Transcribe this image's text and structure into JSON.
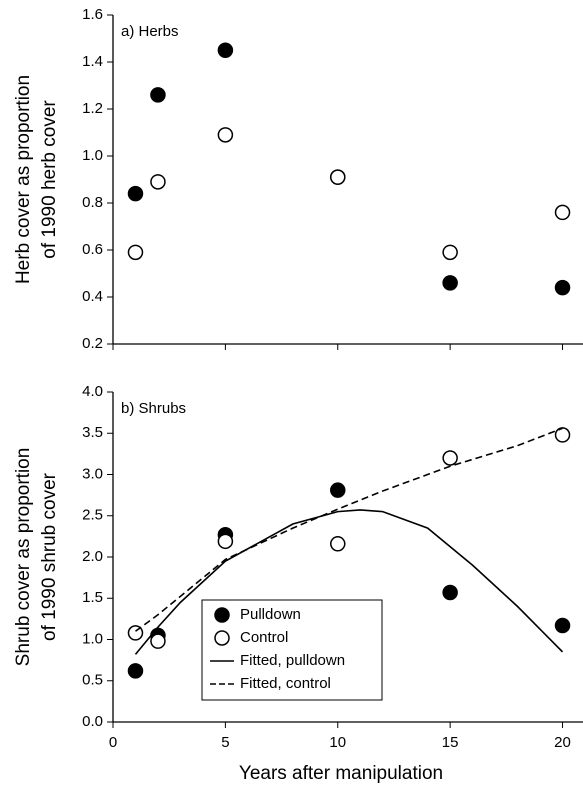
{
  "chart_data": [
    {
      "type": "scatter",
      "title": "a) Herbs",
      "ylabel": [
        "Herb cover as proportion",
        "of 1990 herb cover"
      ],
      "xlim": [
        0,
        21
      ],
      "xticks": [
        0,
        5,
        10,
        15,
        20
      ],
      "xtick_labels": false,
      "ylim": [
        0.2,
        1.6
      ],
      "yticks": [
        0.2,
        0.4,
        0.6,
        0.8,
        {
          "value": 1,
          "label": "1.0"
        },
        1.2,
        1.4,
        1.6
      ],
      "series": [
        {
          "type": "scatter",
          "marker": "filled",
          "color": "#000000",
          "x": [
            1,
            2,
            5,
            10,
            15,
            20
          ],
          "values": [
            0.84,
            1.26,
            1.45,
            0.91,
            0.46,
            0.44
          ]
        },
        {
          "type": "scatter",
          "marker": "open",
          "color": "#000000",
          "x": [
            1,
            2,
            5,
            10,
            15,
            20
          ],
          "values": [
            0.59,
            0.89,
            1.09,
            0.91,
            0.59,
            0.76
          ]
        }
      ]
    },
    {
      "type": "scatter",
      "title": "b) Shrubs",
      "ylabel": [
        "Shrub cover as proportion",
        "of 1990 shrub cover"
      ],
      "xlabel": "Years after manipulation",
      "xlim": [
        0,
        21
      ],
      "xticks": [
        0,
        5,
        10,
        15,
        20
      ],
      "xtick_labels": true,
      "ylim": [
        0,
        4
      ],
      "yticks": [
        {
          "value": 0,
          "label": "0.0"
        },
        0.5,
        {
          "value": 1,
          "label": "1.0"
        },
        1.5,
        {
          "value": 2,
          "label": "2.0"
        },
        2.5,
        {
          "value": 3,
          "label": "3.0"
        },
        3.5,
        {
          "value": 4,
          "label": "4.0"
        }
      ],
      "legend": "lower center",
      "series": [
        {
          "name": "Pulldown",
          "type": "scatter",
          "marker": "filled",
          "color": "#000000",
          "x": [
            1,
            2,
            5,
            10,
            15,
            20
          ],
          "values": [
            0.62,
            1.05,
            2.27,
            2.81,
            1.57,
            1.17
          ]
        },
        {
          "name": "Control",
          "type": "scatter",
          "marker": "open",
          "color": "#000000",
          "x": [
            1,
            2,
            5,
            10,
            15,
            20
          ],
          "values": [
            1.08,
            0.98,
            2.19,
            2.16,
            3.2,
            3.48
          ]
        },
        {
          "name": "Fitted, pulldown",
          "type": "line",
          "style": "solid",
          "color": "#000000",
          "x": [
            1,
            2,
            3,
            5,
            8,
            10,
            11,
            12,
            14,
            16,
            18,
            20
          ],
          "values": [
            0.82,
            1.15,
            1.45,
            1.95,
            2.4,
            2.55,
            2.57,
            2.55,
            2.35,
            1.9,
            1.4,
            0.85
          ]
        },
        {
          "name": "Fitted, control",
          "type": "line",
          "style": "dashed",
          "color": "#000000",
          "x": [
            1,
            2,
            5,
            8,
            10,
            12,
            15,
            18,
            20
          ],
          "values": [
            1.1,
            1.3,
            1.97,
            2.35,
            2.58,
            2.8,
            3.1,
            3.35,
            3.56
          ]
        }
      ]
    }
  ]
}
